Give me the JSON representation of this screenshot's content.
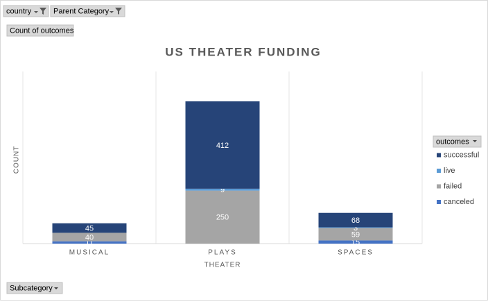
{
  "filters": [
    "country",
    "Parent Category"
  ],
  "value_field": "Count of outcomes",
  "axis_field": "Subcategory",
  "chart_data": {
    "type": "stacked_bar",
    "title": "US THEATER FUNDING",
    "x_label": "THEATER",
    "y_label": "COUNT",
    "legend_title": "outcomes",
    "legend": "right",
    "categories": [
      "MUSICAL",
      "PLAYS",
      "SPACES"
    ],
    "series": [
      {
        "name": "canceled",
        "color": "#4472c4",
        "values": [
          11,
          null,
          15
        ]
      },
      {
        "name": "failed",
        "color": "#a5a5a5",
        "values": [
          40,
          250,
          59
        ]
      },
      {
        "name": "live",
        "color": "#5b9bd5",
        "values": [
          null,
          9,
          3
        ]
      },
      {
        "name": "successful",
        "color": "#264478",
        "values": [
          45,
          412,
          68
        ]
      }
    ]
  }
}
